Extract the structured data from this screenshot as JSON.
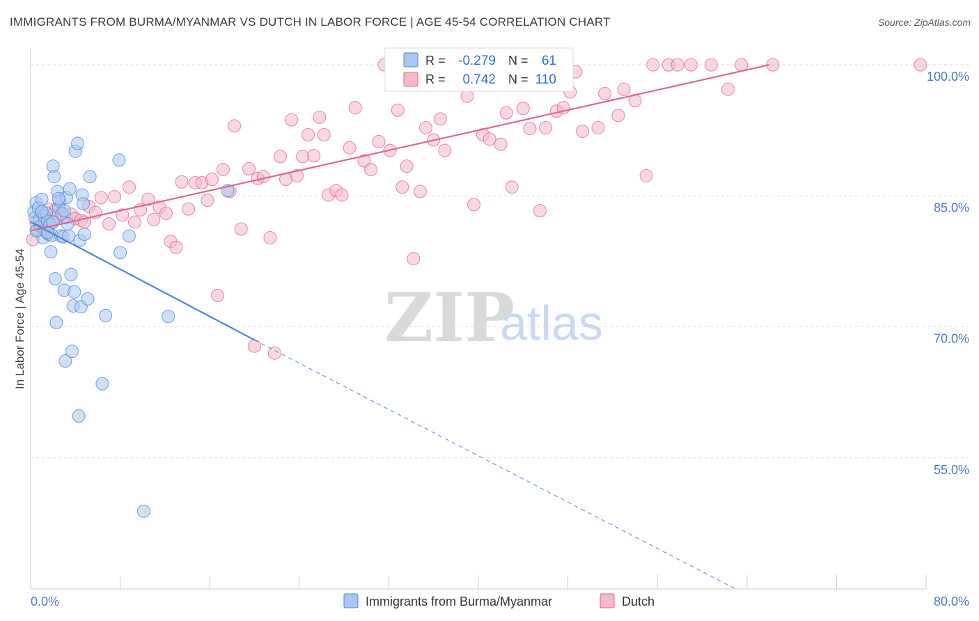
{
  "title": "IMMIGRANTS FROM BURMA/MYANMAR VS DUTCH IN LABOR FORCE | AGE 45-54 CORRELATION CHART",
  "source": "Source: ZipAtlas.com",
  "watermark": {
    "zip": "ZIP",
    "atlas": "atlas"
  },
  "colors": {
    "blue": "#4a86d8",
    "blue_fill": "#a9c8f0",
    "pink": "#e0648e",
    "pink_fill": "#f5b8cc",
    "axis_label": "#4a78c8",
    "grid": "#dcdcdc"
  },
  "legend": {
    "rows": [
      {
        "r_label": "R =",
        "r_value": "-0.279",
        "n_label": "N =",
        "n_value": "61"
      },
      {
        "r_label": "R =",
        "r_value": "0.742",
        "n_label": "N =",
        "n_value": "110"
      }
    ]
  },
  "chart_data": {
    "type": "scatter",
    "xlabel": "",
    "ylabel": "In Labor Force | Age 45-54",
    "xlim": [
      0,
      80
    ],
    "ylim": [
      40,
      102
    ],
    "x_tick_labels": {
      "min": "0.0%",
      "max": "80.0%"
    },
    "y_ticks": [
      55,
      70,
      85,
      100
    ],
    "y_tick_labels": [
      "55.0%",
      "70.0%",
      "85.0%",
      "100.0%"
    ],
    "grid": true,
    "legend_position": "top-center",
    "series": [
      {
        "name": "Immigrants from Burma/Myanmar",
        "color": "#4a86d8",
        "points": [
          [
            0.3,
            83.2
          ],
          [
            0.4,
            82.5
          ],
          [
            0.5,
            84.2
          ],
          [
            0.6,
            81.1
          ],
          [
            0.7,
            83.6
          ],
          [
            0.8,
            82.3
          ],
          [
            0.9,
            81.5
          ],
          [
            1.0,
            84.6
          ],
          [
            1.1,
            80.2
          ],
          [
            1.2,
            82.7
          ],
          [
            1.3,
            81.0
          ],
          [
            1.4,
            83.0
          ],
          [
            1.5,
            82.1
          ],
          [
            1.6,
            80.6
          ],
          [
            1.7,
            81.7
          ],
          [
            1.8,
            78.6
          ],
          [
            1.9,
            80.5
          ],
          [
            2.0,
            88.4
          ],
          [
            2.1,
            87.2
          ],
          [
            2.2,
            75.5
          ],
          [
            2.3,
            70.5
          ],
          [
            2.4,
            85.5
          ],
          [
            2.5,
            83.7
          ],
          [
            2.6,
            84.4
          ],
          [
            2.7,
            80.4
          ],
          [
            2.8,
            82.9
          ],
          [
            2.9,
            80.3
          ],
          [
            3.0,
            74.2
          ],
          [
            3.1,
            66.1
          ],
          [
            3.2,
            84.8
          ],
          [
            3.3,
            81.8
          ],
          [
            3.4,
            80.4
          ],
          [
            3.5,
            85.8
          ],
          [
            3.6,
            76.0
          ],
          [
            3.7,
            67.2
          ],
          [
            3.8,
            72.4
          ],
          [
            3.9,
            74.0
          ],
          [
            4.0,
            90.1
          ],
          [
            4.2,
            91.0
          ],
          [
            4.3,
            59.8
          ],
          [
            4.4,
            79.9
          ],
          [
            4.5,
            72.3
          ],
          [
            4.6,
            85.1
          ],
          [
            4.7,
            84.1
          ],
          [
            4.8,
            80.6
          ],
          [
            5.1,
            73.2
          ],
          [
            5.3,
            87.2
          ],
          [
            6.4,
            63.5
          ],
          [
            6.7,
            71.3
          ],
          [
            7.9,
            89.1
          ],
          [
            8.0,
            78.5
          ],
          [
            8.8,
            80.4
          ],
          [
            10.1,
            48.9
          ],
          [
            12.3,
            71.2
          ],
          [
            17.6,
            85.6
          ],
          [
            0.5,
            81.0
          ],
          [
            1.0,
            83.2
          ],
          [
            1.5,
            80.8
          ],
          [
            2.0,
            82.0
          ],
          [
            2.5,
            84.7
          ],
          [
            3.0,
            83.3
          ]
        ],
        "trend": {
          "x0": 0,
          "y0": 82.0,
          "x1": 20.0,
          "y1": 68.5,
          "dashed_x1": 63.0,
          "dashed_y1": 39.5
        }
      },
      {
        "name": "Dutch",
        "color": "#e0648e",
        "points": [
          [
            0.2,
            80.0
          ],
          [
            0.5,
            82.0
          ],
          [
            0.8,
            81.5
          ],
          [
            1.0,
            83.0
          ],
          [
            1.2,
            82.5
          ],
          [
            1.4,
            81.9
          ],
          [
            1.6,
            83.5
          ],
          [
            1.8,
            82.8
          ],
          [
            2.0,
            82.1
          ],
          [
            2.2,
            83.3
          ],
          [
            2.4,
            82.6
          ],
          [
            2.8,
            83.0
          ],
          [
            3.2,
            82.5
          ],
          [
            3.6,
            82.9
          ],
          [
            4.0,
            82.4
          ],
          [
            4.5,
            82.2
          ],
          [
            4.8,
            82.0
          ],
          [
            5.2,
            83.8
          ],
          [
            5.8,
            83.1
          ],
          [
            6.3,
            84.8
          ],
          [
            7.0,
            81.8
          ],
          [
            7.5,
            84.9
          ],
          [
            8.2,
            82.8
          ],
          [
            8.8,
            86.0
          ],
          [
            9.3,
            82.0
          ],
          [
            9.8,
            83.4
          ],
          [
            10.5,
            84.6
          ],
          [
            11.0,
            82.3
          ],
          [
            11.5,
            83.7
          ],
          [
            12.1,
            83.0
          ],
          [
            12.5,
            79.8
          ],
          [
            13.0,
            79.1
          ],
          [
            13.5,
            86.6
          ],
          [
            14.1,
            83.5
          ],
          [
            14.7,
            86.5
          ],
          [
            15.3,
            86.5
          ],
          [
            15.8,
            84.5
          ],
          [
            16.2,
            86.9
          ],
          [
            16.7,
            73.6
          ],
          [
            17.2,
            88.0
          ],
          [
            17.8,
            85.5
          ],
          [
            18.2,
            93.0
          ],
          [
            18.8,
            81.2
          ],
          [
            19.5,
            88.1
          ],
          [
            20.0,
            67.8
          ],
          [
            20.3,
            87.0
          ],
          [
            20.8,
            87.2
          ],
          [
            21.4,
            80.2
          ],
          [
            21.8,
            67.0
          ],
          [
            22.3,
            89.5
          ],
          [
            22.8,
            86.9
          ],
          [
            23.3,
            93.7
          ],
          [
            23.8,
            87.3
          ],
          [
            24.3,
            89.5
          ],
          [
            24.8,
            92.0
          ],
          [
            25.3,
            89.6
          ],
          [
            25.8,
            94.0
          ],
          [
            26.2,
            92.0
          ],
          [
            26.6,
            85.1
          ],
          [
            27.3,
            85.6
          ],
          [
            27.8,
            85.1
          ],
          [
            28.5,
            90.5
          ],
          [
            29.0,
            95.1
          ],
          [
            29.8,
            89.0
          ],
          [
            30.4,
            88.0
          ],
          [
            31.1,
            91.2
          ],
          [
            31.6,
            100.0
          ],
          [
            32.1,
            90.2
          ],
          [
            32.8,
            94.8
          ],
          [
            33.2,
            86.0
          ],
          [
            33.6,
            88.4
          ],
          [
            34.2,
            77.8
          ],
          [
            34.8,
            85.5
          ],
          [
            35.3,
            92.8
          ],
          [
            36.0,
            91.4
          ],
          [
            36.6,
            93.8
          ],
          [
            37.0,
            90.2
          ],
          [
            38.1,
            100.0
          ],
          [
            39.0,
            96.4
          ],
          [
            39.6,
            84.0
          ],
          [
            40.4,
            92.0
          ],
          [
            41.0,
            91.5
          ],
          [
            41.4,
            100.0
          ],
          [
            42.0,
            90.9
          ],
          [
            42.5,
            94.5
          ],
          [
            43.0,
            86.0
          ],
          [
            44.0,
            95.0
          ],
          [
            44.6,
            92.7
          ],
          [
            45.5,
            83.3
          ],
          [
            46.0,
            92.8
          ],
          [
            47.0,
            94.7
          ],
          [
            47.6,
            95.1
          ],
          [
            48.2,
            96.9
          ],
          [
            48.7,
            99.2
          ],
          [
            49.3,
            92.4
          ],
          [
            50.7,
            92.8
          ],
          [
            51.3,
            96.7
          ],
          [
            52.5,
            94.2
          ],
          [
            53.0,
            97.2
          ],
          [
            54.0,
            95.9
          ],
          [
            55.0,
            87.3
          ],
          [
            55.6,
            100.0
          ],
          [
            57.0,
            100.0
          ],
          [
            57.8,
            100.0
          ],
          [
            59.0,
            100.0
          ],
          [
            60.8,
            100.0
          ],
          [
            62.3,
            97.2
          ],
          [
            63.5,
            100.0
          ],
          [
            66.3,
            100.0
          ],
          [
            79.5,
            100.0
          ]
        ],
        "trend": {
          "x0": 0,
          "y0": 81.0,
          "x1": 66.0,
          "y1": 100.0
        }
      }
    ]
  },
  "bottom_legend": [
    {
      "label": "Immigrants from Burma/Myanmar"
    },
    {
      "label": "Dutch"
    }
  ]
}
